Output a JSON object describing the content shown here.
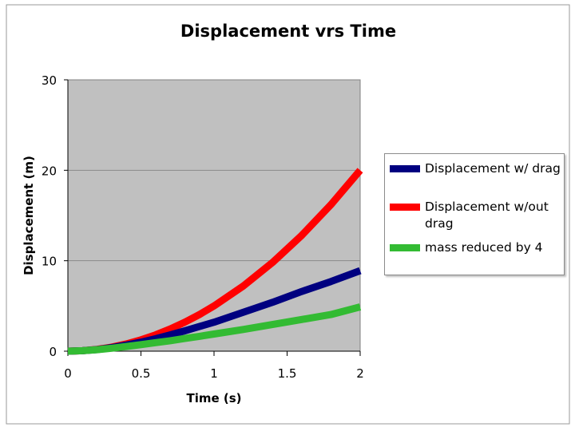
{
  "chart_data": {
    "type": "line",
    "title": "Displacement vrs Time",
    "xlabel": "Time (s)",
    "ylabel": "Displacement (m)",
    "xlim": [
      0,
      2
    ],
    "ylim": [
      0,
      30
    ],
    "x_ticks": [
      "0",
      "0.5",
      "1",
      "1.5",
      "2"
    ],
    "y_ticks": [
      "0",
      "10",
      "20",
      "30"
    ],
    "grid": true,
    "plot_background": "#c0c0c0",
    "legend_position": "right",
    "series": [
      {
        "name": "Displacement w/ drag",
        "color": "#000080",
        "x": [
          0,
          0.1,
          0.2,
          0.3,
          0.4,
          0.5,
          0.6,
          0.7,
          0.8,
          0.9,
          1.0,
          1.2,
          1.4,
          1.6,
          1.8,
          2.0
        ],
        "y": [
          0,
          0.05,
          0.18,
          0.4,
          0.68,
          1.0,
          1.38,
          1.8,
          2.25,
          2.73,
          3.2,
          4.3,
          5.4,
          6.6,
          7.7,
          8.9
        ]
      },
      {
        "name": "Displacement w/out drag",
        "color": "#ff0000",
        "x": [
          0,
          0.1,
          0.2,
          0.3,
          0.4,
          0.5,
          0.6,
          0.7,
          0.8,
          0.9,
          1.0,
          1.2,
          1.4,
          1.6,
          1.8,
          2.0
        ],
        "y": [
          0,
          0.05,
          0.2,
          0.45,
          0.8,
          1.25,
          1.8,
          2.45,
          3.2,
          4.05,
          5.0,
          7.2,
          9.8,
          12.8,
          16.2,
          20.0
        ]
      },
      {
        "name": "mass reduced by 4",
        "color": "#33bb33",
        "x": [
          0,
          0.1,
          0.2,
          0.3,
          0.4,
          0.5,
          0.6,
          0.7,
          0.8,
          0.9,
          1.0,
          1.2,
          1.4,
          1.6,
          1.8,
          2.0
        ],
        "y": [
          0,
          0.05,
          0.17,
          0.33,
          0.52,
          0.72,
          0.94,
          1.16,
          1.4,
          1.64,
          1.9,
          2.4,
          2.95,
          3.5,
          4.05,
          4.9
        ]
      }
    ]
  }
}
